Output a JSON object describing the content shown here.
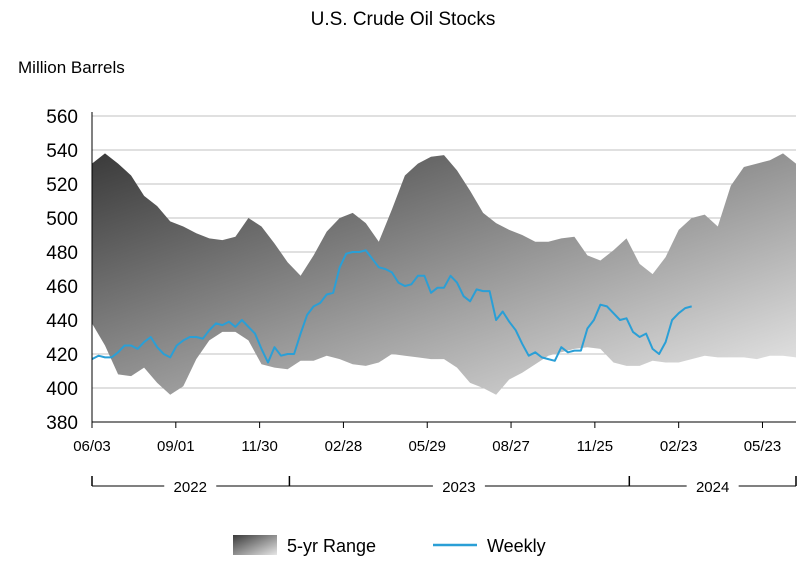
{
  "chart_data": {
    "type": "area",
    "title": "U.S. Crude Oil Stocks",
    "ylabel": "Million Barrels",
    "ylim": [
      380,
      560
    ],
    "yticks": [
      380,
      400,
      420,
      440,
      460,
      480,
      500,
      520,
      540,
      560
    ],
    "xlim": [
      "2022-06-03",
      "2024-06-28"
    ],
    "xticks": [
      {
        "label": "06/03",
        "date": "2022-06-03"
      },
      {
        "label": "09/01",
        "date": "2022-09-01"
      },
      {
        "label": "11/30",
        "date": "2022-11-30"
      },
      {
        "label": "02/28",
        "date": "2023-02-28"
      },
      {
        "label": "05/29",
        "date": "2023-05-29"
      },
      {
        "label": "08/27",
        "date": "2023-08-27"
      },
      {
        "label": "11/25",
        "date": "2023-11-25"
      },
      {
        "label": "02/23",
        "date": "2024-02-23"
      },
      {
        "label": "05/23",
        "date": "2024-05-23"
      }
    ],
    "years": [
      {
        "label": "2022",
        "start": "2022-06-03",
        "end": "2022-12-31"
      },
      {
        "label": "2023",
        "start": "2023-01-01",
        "end": "2023-12-31"
      },
      {
        "label": "2024",
        "start": "2024-01-01",
        "end": "2024-06-28"
      }
    ],
    "grid": true,
    "legend": {
      "position": "bottom-center",
      "items": [
        {
          "label": "5-yr Range",
          "kind": "range"
        },
        {
          "label": "Weekly",
          "kind": "line"
        }
      ]
    },
    "colors": {
      "weekly": "#2a9fd6",
      "range_dark": "#3a3a3a",
      "range_light": "#ececec",
      "grid": "#c0c0c0"
    },
    "series": [
      {
        "name": "5-yr Range",
        "type": "range",
        "x": [
          "2022-06-03",
          "2022-06-17",
          "2022-07-01",
          "2022-07-15",
          "2022-07-29",
          "2022-08-12",
          "2022-08-26",
          "2022-09-09",
          "2022-09-23",
          "2022-10-07",
          "2022-10-21",
          "2022-11-04",
          "2022-11-18",
          "2022-12-02",
          "2022-12-16",
          "2022-12-30",
          "2023-01-13",
          "2023-01-27",
          "2023-02-10",
          "2023-02-24",
          "2023-03-10",
          "2023-03-24",
          "2023-04-07",
          "2023-04-21",
          "2023-05-05",
          "2023-05-19",
          "2023-06-02",
          "2023-06-16",
          "2023-06-30",
          "2023-07-14",
          "2023-07-28",
          "2023-08-11",
          "2023-08-25",
          "2023-09-08",
          "2023-09-22",
          "2023-10-06",
          "2023-10-20",
          "2023-11-03",
          "2023-11-17",
          "2023-12-01",
          "2023-12-15",
          "2023-12-29",
          "2024-01-12",
          "2024-01-26",
          "2024-02-09",
          "2024-02-23",
          "2024-03-08",
          "2024-03-22",
          "2024-04-05",
          "2024-04-19",
          "2024-05-03",
          "2024-05-17",
          "2024-05-31",
          "2024-06-14",
          "2024-06-28"
        ],
        "high": [
          532,
          538,
          532,
          525,
          513,
          507,
          498,
          495,
          491,
          488,
          487,
          489,
          500,
          495,
          485,
          474,
          466,
          478,
          492,
          500,
          503,
          497,
          486,
          505,
          525,
          532,
          536,
          537,
          528,
          516,
          503,
          497,
          493,
          490,
          486,
          486,
          488,
          489,
          478,
          475,
          481,
          488,
          473,
          467,
          477,
          493,
          500,
          502,
          495,
          519,
          530,
          532,
          534,
          538,
          532
        ],
        "low": [
          438,
          425,
          408,
          407,
          412,
          403,
          396,
          401,
          417,
          428,
          433,
          433,
          428,
          414,
          412,
          411,
          416,
          416,
          419,
          417,
          414,
          413,
          415,
          420,
          419,
          418,
          417,
          417,
          412,
          403,
          400,
          396,
          405,
          409,
          414,
          419,
          421,
          423,
          424,
          423,
          415,
          413,
          413,
          416,
          415,
          415,
          417,
          419,
          418,
          418,
          418,
          417,
          419,
          419,
          418
        ]
      },
      {
        "name": "Weekly",
        "type": "line",
        "x": [
          "2022-06-03",
          "2022-06-10",
          "2022-06-17",
          "2022-06-24",
          "2022-07-01",
          "2022-07-08",
          "2022-07-15",
          "2022-07-22",
          "2022-07-29",
          "2022-08-05",
          "2022-08-12",
          "2022-08-19",
          "2022-08-26",
          "2022-09-02",
          "2022-09-09",
          "2022-09-16",
          "2022-09-23",
          "2022-09-30",
          "2022-10-07",
          "2022-10-14",
          "2022-10-21",
          "2022-10-28",
          "2022-11-04",
          "2022-11-11",
          "2022-11-18",
          "2022-11-25",
          "2022-12-02",
          "2022-12-09",
          "2022-12-16",
          "2022-12-23",
          "2022-12-30",
          "2023-01-06",
          "2023-01-13",
          "2023-01-20",
          "2023-01-27",
          "2023-02-03",
          "2023-02-10",
          "2023-02-17",
          "2023-02-24",
          "2023-03-03",
          "2023-03-10",
          "2023-03-17",
          "2023-03-24",
          "2023-03-31",
          "2023-04-07",
          "2023-04-14",
          "2023-04-21",
          "2023-04-28",
          "2023-05-05",
          "2023-05-12",
          "2023-05-19",
          "2023-05-26",
          "2023-06-02",
          "2023-06-09",
          "2023-06-16",
          "2023-06-23",
          "2023-06-30",
          "2023-07-07",
          "2023-07-14",
          "2023-07-21",
          "2023-07-28",
          "2023-08-04",
          "2023-08-11",
          "2023-08-18",
          "2023-08-25",
          "2023-09-01",
          "2023-09-08",
          "2023-09-15",
          "2023-09-22",
          "2023-09-29",
          "2023-10-06",
          "2023-10-13",
          "2023-10-20",
          "2023-10-27",
          "2023-11-03",
          "2023-11-10",
          "2023-11-17",
          "2023-11-24",
          "2023-12-01",
          "2023-12-08",
          "2023-12-15",
          "2023-12-22",
          "2023-12-29",
          "2024-01-05",
          "2024-01-12",
          "2024-01-19",
          "2024-01-26",
          "2024-02-02",
          "2024-02-09",
          "2024-02-16",
          "2024-02-23",
          "2024-03-01",
          "2024-03-08"
        ],
        "values": [
          417,
          419,
          418,
          418,
          421,
          425,
          425,
          423,
          427,
          430,
          424,
          420,
          418,
          425,
          428,
          430,
          430,
          429,
          434,
          438,
          437,
          439,
          436,
          440,
          436,
          432,
          423,
          415,
          424,
          419,
          420,
          420,
          432,
          443,
          448,
          450,
          455,
          456,
          471,
          479,
          480,
          480,
          481,
          476,
          471,
          470,
          468,
          462,
          460,
          461,
          466,
          466,
          456,
          459,
          459,
          466,
          462,
          454,
          451,
          458,
          457,
          457,
          440,
          445,
          439,
          434,
          426,
          419,
          421,
          418,
          417,
          416,
          424,
          421,
          422,
          422,
          435,
          440,
          449,
          448,
          444,
          440,
          441,
          433,
          430,
          432,
          423,
          420,
          427,
          440,
          444,
          447,
          448
        ]
      }
    ]
  }
}
